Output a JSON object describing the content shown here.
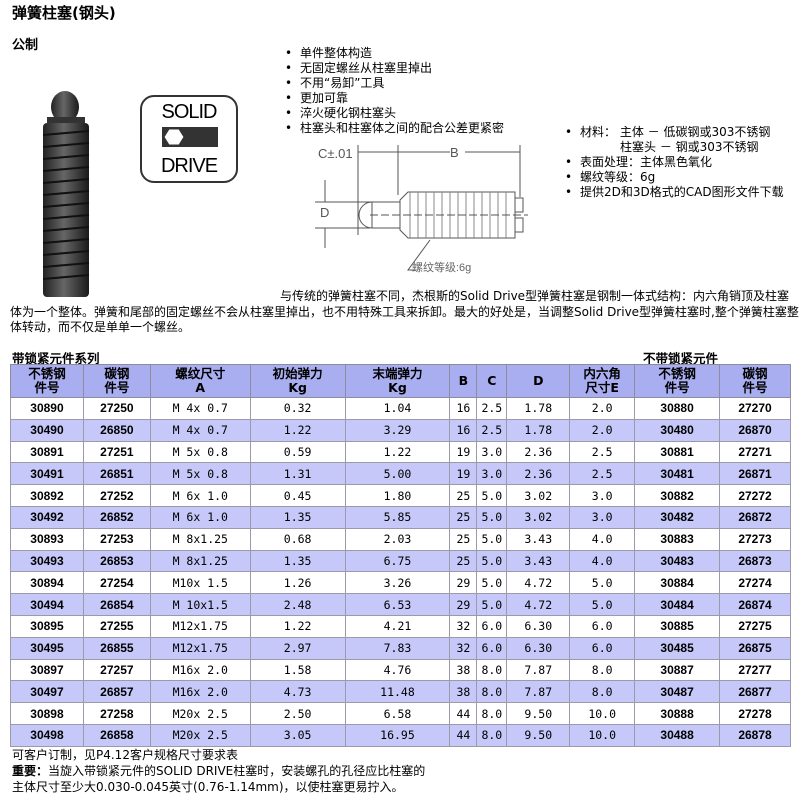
{
  "title": "弹簧柱塞(钢头)",
  "subtitle": "公制",
  "logo_text": [
    "SOLID",
    "DRIVE"
  ],
  "features": [
    "单件整体构造",
    "无固定螺丝从柱塞里掉出",
    "不用“易卸”工具",
    "更加可靠",
    "淬火硬化钢柱塞头",
    "柱塞头和柱塞体之间的配合公差更紧密"
  ],
  "specs": {
    "material_label": "材料：",
    "material_body": "主体  －  低碳钢或303不锈钢",
    "material_head": "柱塞头  －  钢或303不锈钢",
    "finish": "表面处理：主体黑色氧化",
    "thread": "螺纹等级：6g",
    "cad": "提供2D和3D格式的CAD图形文件下载"
  },
  "diagram": {
    "c_label": "C±.01",
    "b_label": "B",
    "d_label": "D",
    "thread_label": "螺纹等级:6g"
  },
  "description": "与传统的弹簧柱塞不同，杰根斯的Solid Drive型弹簧柱塞是钢制一体式结构：内六角销顶及柱塞体为一个整体。弹簧和尾部的固定螺丝不会从柱塞里掉出，也不用特殊工具来拆卸。最大的好处是，当调整Solid Drive型弹簧柱塞时,整个弹簧柱塞整体转动，而不仅是单单一个螺丝。",
  "table": {
    "caption_left": "带锁紧元件系列",
    "caption_right": "不带锁紧元件",
    "headers": [
      [
        "不锈钢",
        "件号"
      ],
      [
        "碳钢",
        "件号"
      ],
      [
        "螺纹尺寸",
        "A"
      ],
      [
        "初始弹力",
        "Kg"
      ],
      [
        "末端弹力",
        "Kg"
      ],
      [
        "B",
        ""
      ],
      [
        "C",
        ""
      ],
      [
        "D",
        ""
      ],
      [
        "内六角",
        "尺寸E"
      ],
      [
        "不锈钢",
        "件号"
      ],
      [
        "碳钢",
        "件号"
      ]
    ],
    "rows": [
      [
        "30890",
        "27250",
        "M 4x 0.7",
        "0.32",
        "1.04",
        "16",
        "2.5",
        "1.78",
        "2.0",
        "30880",
        "27270"
      ],
      [
        "30490",
        "26850",
        "M 4x 0.7",
        "1.22",
        "3.29",
        "16",
        "2.5",
        "1.78",
        "2.0",
        "30480",
        "26870"
      ],
      [
        "30891",
        "27251",
        "M 5x 0.8",
        "0.59",
        "1.22",
        "19",
        "3.0",
        "2.36",
        "2.5",
        "30881",
        "27271"
      ],
      [
        "30491",
        "26851",
        "M 5x 0.8",
        "1.31",
        "5.00",
        "19",
        "3.0",
        "2.36",
        "2.5",
        "30481",
        "26871"
      ],
      [
        "30892",
        "27252",
        "M 6x 1.0",
        "0.45",
        "1.80",
        "25",
        "5.0",
        "3.02",
        "3.0",
        "30882",
        "27272"
      ],
      [
        "30492",
        "26852",
        "M 6x 1.0",
        "1.35",
        "5.85",
        "25",
        "5.0",
        "3.02",
        "3.0",
        "30482",
        "26872"
      ],
      [
        "30893",
        "27253",
        "M 8x1.25",
        "0.68",
        "2.03",
        "25",
        "5.0",
        "3.43",
        "4.0",
        "30883",
        "27273"
      ],
      [
        "30493",
        "26853",
        "M 8x1.25",
        "1.35",
        "6.75",
        "25",
        "5.0",
        "3.43",
        "4.0",
        "30483",
        "26873"
      ],
      [
        "30894",
        "27254",
        "M10x 1.5",
        "1.26",
        "3.26",
        "29",
        "5.0",
        "4.72",
        "5.0",
        "30884",
        "27274"
      ],
      [
        "30494",
        "26854",
        "M 10x1.5",
        "2.48",
        "6.53",
        "29",
        "5.0",
        "4.72",
        "5.0",
        "30484",
        "26874"
      ],
      [
        "30895",
        "27255",
        "M12x1.75",
        "1.22",
        "4.21",
        "32",
        "6.0",
        "6.30",
        "6.0",
        "30885",
        "27275"
      ],
      [
        "30495",
        "26855",
        "M12x1.75",
        "2.97",
        "7.83",
        "32",
        "6.0",
        "6.30",
        "6.0",
        "30485",
        "26875"
      ],
      [
        "30897",
        "27257",
        "M16x 2.0",
        "1.58",
        "4.76",
        "38",
        "8.0",
        "7.87",
        "8.0",
        "30887",
        "27277"
      ],
      [
        "30497",
        "26857",
        "M16x 2.0",
        "4.73",
        "11.48",
        "38",
        "8.0",
        "7.87",
        "8.0",
        "30487",
        "26877"
      ],
      [
        "30898",
        "27258",
        "M20x 2.5",
        "2.50",
        "6.58",
        "44",
        "8.0",
        "9.50",
        "10.0",
        "30888",
        "27278"
      ],
      [
        "30498",
        "26858",
        "M20x 2.5",
        "3.05",
        "16.95",
        "44",
        "8.0",
        "9.50",
        "10.0",
        "30488",
        "26878"
      ]
    ]
  },
  "notes": {
    "line1": "可客户订制，见P4.12客户规格尺寸要求表",
    "important_label": "重要：",
    "line2": "当旋入带锁紧元件的SOLID DRIVE柱塞时，安装螺孔的孔径应比柱塞的",
    "line3": "主体尺寸至少大0.030-0.045英寸(0.76-1.14mm)，以使柱塞更易拧入。"
  },
  "colors": {
    "header_bg": "#a9aef0",
    "alt_row_bg": "#c5c8f8"
  }
}
